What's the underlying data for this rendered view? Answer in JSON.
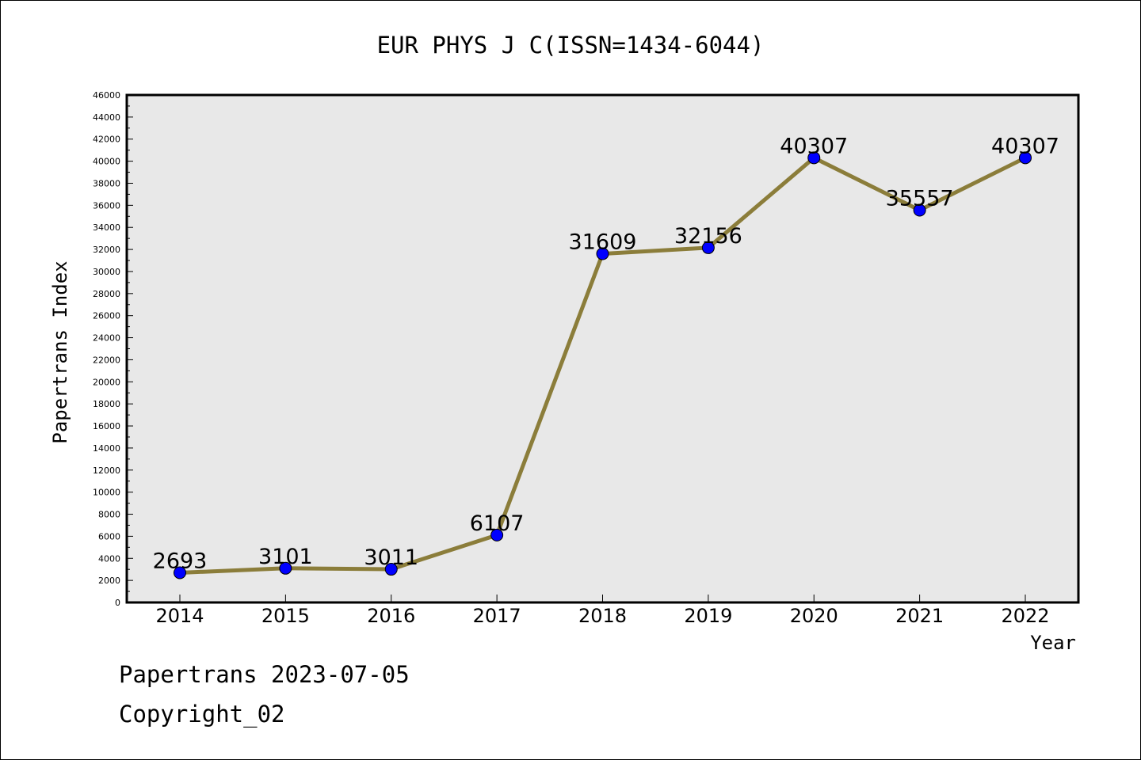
{
  "chart_data": {
    "type": "line",
    "title": "EUR PHYS J C(ISSN=1434-6044)",
    "xlabel": "Year",
    "ylabel": "Papertrans Index",
    "categories": [
      "2014",
      "2015",
      "2016",
      "2017",
      "2018",
      "2019",
      "2020",
      "2021",
      "2022"
    ],
    "series": [
      {
        "values": [
          2693,
          3101,
          3011,
          6107,
          31609,
          32156,
          40307,
          35557,
          40307
        ],
        "line_color": "#8b7d3a",
        "marker_color": "#0000ff"
      }
    ],
    "data_labels": [
      "2693",
      "3101",
      "3011",
      "6107",
      "31609",
      "32156",
      "40307",
      "35557",
      "40307"
    ],
    "ylim": [
      0,
      46000
    ],
    "yticks": [
      "0",
      "2000",
      "4000",
      "6000",
      "8000",
      "10000",
      "12000",
      "14000",
      "16000",
      "18000",
      "20000",
      "22000",
      "24000",
      "26000",
      "28000",
      "30000",
      "32000",
      "34000",
      "36000",
      "38000",
      "40000",
      "42000",
      "44000",
      "46000"
    ],
    "grid": false,
    "plot_background": "#e8e8e8"
  },
  "footer": {
    "line1": "Papertrans 2023-07-05",
    "line2": "Copyright_02"
  }
}
